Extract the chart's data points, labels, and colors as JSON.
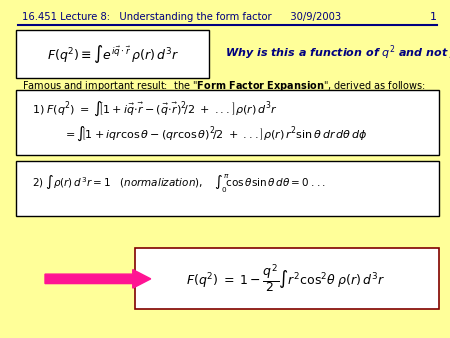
{
  "bg_color": "#FFFF99",
  "title_text": "16.451 Lecture 8:   Understanding the form factor      30/9/2003",
  "page_num": "1",
  "title_color": "#000080",
  "line_color": "#000080",
  "why_color": "#000080",
  "famous_color": "#000000",
  "arrow_color": "#FF1493",
  "box_color": "#000000",
  "box_bg": "#FFFFFF"
}
